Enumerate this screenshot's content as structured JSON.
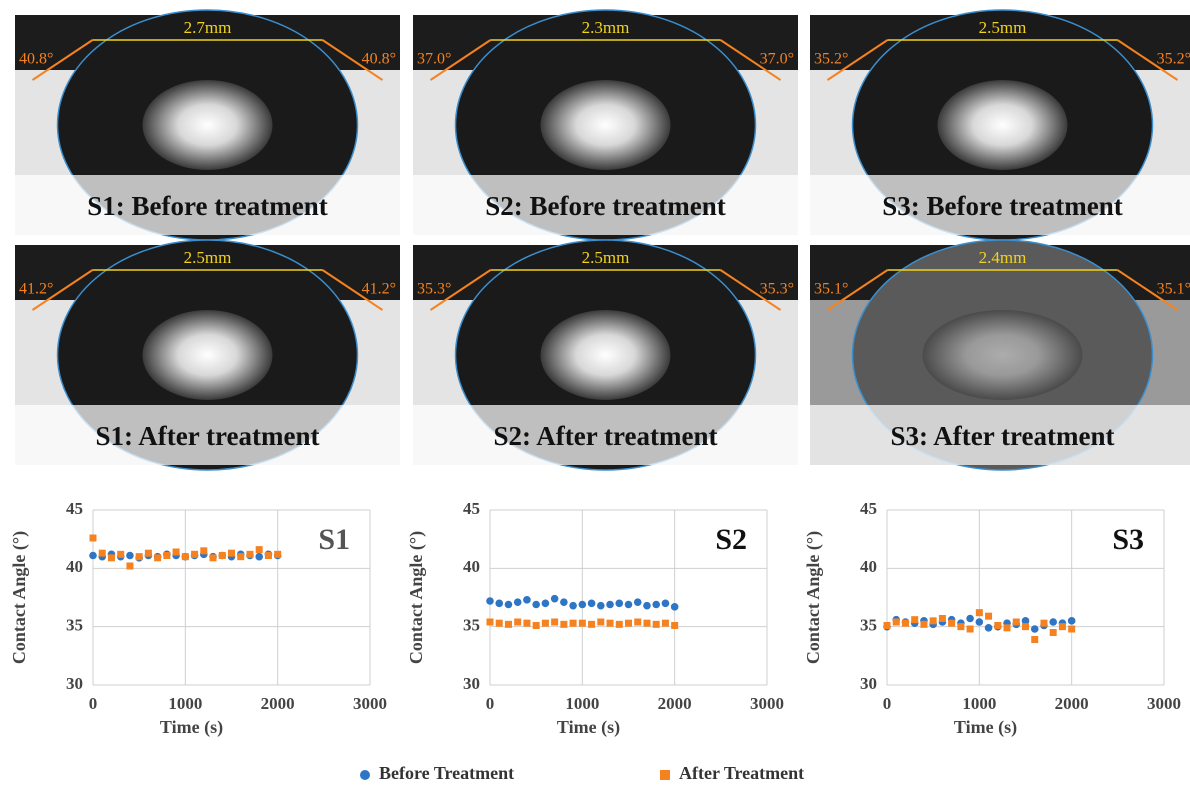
{
  "photos": [
    {
      "label": "S1: Before treatment",
      "width": "2.7mm",
      "left_angle": "40.8°",
      "right_angle": "40.8°"
    },
    {
      "label": "S2: Before treatment",
      "width": "2.3mm",
      "left_angle": "37.0°",
      "right_angle": "37.0°"
    },
    {
      "label": "S3: Before treatment",
      "width": "2.5mm",
      "left_angle": "35.2°",
      "right_angle": "35.2°"
    },
    {
      "label": "S1: After treatment",
      "width": "2.5mm",
      "left_angle": "41.2°",
      "right_angle": "41.2°"
    },
    {
      "label": "S2: After treatment",
      "width": "2.5mm",
      "left_angle": "35.3°",
      "right_angle": "35.3°"
    },
    {
      "label": "S3: After treatment",
      "width": "2.4mm",
      "left_angle": "35.1°",
      "right_angle": "35.1°"
    }
  ],
  "chart_data": [
    {
      "type": "scatter",
      "annotation": "S1",
      "x_label": "Time (s)",
      "y_label": "Contact Angle (°)",
      "xlim": [
        0,
        3000
      ],
      "xticks": [
        0,
        1000,
        2000,
        3000
      ],
      "ylim": [
        30,
        45
      ],
      "yticks": [
        30,
        35,
        40,
        45
      ],
      "grid": true,
      "x": [
        0,
        100,
        200,
        300,
        400,
        500,
        600,
        700,
        800,
        900,
        1000,
        1100,
        1200,
        1300,
        1400,
        1500,
        1600,
        1700,
        1800,
        1900,
        2000
      ],
      "series": [
        {
          "name": "Before Treatment",
          "color": "#2e75c6",
          "marker": "circle",
          "values": [
            41.1,
            41.0,
            41.2,
            41.0,
            41.1,
            40.9,
            41.1,
            41.0,
            41.2,
            41.1,
            41.0,
            41.1,
            41.2,
            41.0,
            41.1,
            41.0,
            41.2,
            41.1,
            41.0,
            41.2,
            41.1
          ]
        },
        {
          "name": "After Treatment",
          "color": "#f5821f",
          "marker": "square",
          "values": [
            42.6,
            41.3,
            40.9,
            41.2,
            40.2,
            41.0,
            41.3,
            40.9,
            41.1,
            41.4,
            41.0,
            41.2,
            41.5,
            40.9,
            41.1,
            41.3,
            41.0,
            41.2,
            41.6,
            41.1,
            41.2
          ]
        }
      ]
    },
    {
      "type": "scatter",
      "annotation": "S2",
      "x_label": "Time (s)",
      "y_label": "Contact Angle (°)",
      "xlim": [
        0,
        3000
      ],
      "xticks": [
        0,
        1000,
        2000,
        3000
      ],
      "ylim": [
        30,
        45
      ],
      "yticks": [
        30,
        35,
        40,
        45
      ],
      "grid": true,
      "x": [
        0,
        100,
        200,
        300,
        400,
        500,
        600,
        700,
        800,
        900,
        1000,
        1100,
        1200,
        1300,
        1400,
        1500,
        1600,
        1700,
        1800,
        1900,
        2000
      ],
      "series": [
        {
          "name": "Before Treatment",
          "color": "#2e75c6",
          "marker": "circle",
          "values": [
            37.2,
            37.0,
            36.9,
            37.1,
            37.3,
            36.9,
            37.0,
            37.4,
            37.1,
            36.8,
            36.9,
            37.0,
            36.8,
            36.9,
            37.0,
            36.9,
            37.1,
            36.8,
            36.9,
            37.0,
            36.7
          ]
        },
        {
          "name": "After Treatment",
          "color": "#f5821f",
          "marker": "square",
          "values": [
            35.4,
            35.3,
            35.2,
            35.4,
            35.3,
            35.1,
            35.3,
            35.4,
            35.2,
            35.3,
            35.3,
            35.2,
            35.4,
            35.3,
            35.2,
            35.3,
            35.4,
            35.3,
            35.2,
            35.3,
            35.1
          ]
        }
      ]
    },
    {
      "type": "scatter",
      "annotation": "S3",
      "x_label": "Time (s)",
      "y_label": "Contact Angle (°)",
      "xlim": [
        0,
        3000
      ],
      "xticks": [
        0,
        1000,
        2000,
        3000
      ],
      "ylim": [
        30,
        45
      ],
      "yticks": [
        30,
        35,
        40,
        45
      ],
      "grid": true,
      "x": [
        0,
        100,
        200,
        300,
        400,
        500,
        600,
        700,
        800,
        900,
        1000,
        1100,
        1200,
        1300,
        1400,
        1500,
        1600,
        1700,
        1800,
        1900,
        2000
      ],
      "series": [
        {
          "name": "Before Treatment",
          "color": "#2e75c6",
          "marker": "circle",
          "values": [
            35.0,
            35.6,
            35.4,
            35.3,
            35.5,
            35.2,
            35.4,
            35.6,
            35.3,
            35.7,
            35.4,
            34.9,
            35.0,
            35.3,
            35.2,
            35.5,
            34.8,
            35.1,
            35.4,
            35.3,
            35.5
          ]
        },
        {
          "name": "After Treatment",
          "color": "#f5821f",
          "marker": "square",
          "values": [
            35.1,
            35.4,
            35.3,
            35.6,
            35.2,
            35.5,
            35.7,
            35.3,
            35.0,
            34.8,
            36.2,
            35.9,
            35.1,
            34.9,
            35.4,
            35.0,
            33.9,
            35.3,
            34.5,
            35.0,
            34.8
          ]
        }
      ]
    }
  ]
}
